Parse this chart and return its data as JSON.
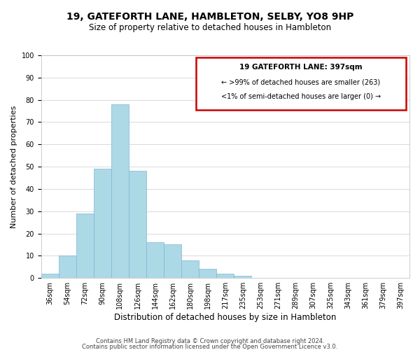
{
  "title": "19, GATEFORTH LANE, HAMBLETON, SELBY, YO8 9HP",
  "subtitle": "Size of property relative to detached houses in Hambleton",
  "xlabel": "Distribution of detached houses by size in Hambleton",
  "ylabel": "Number of detached properties",
  "bar_color": "#add8e6",
  "bar_edge_color": "#7ab8d4",
  "background_color": "#ffffff",
  "grid_color": "#cccccc",
  "bin_labels": [
    "36sqm",
    "54sqm",
    "72sqm",
    "90sqm",
    "108sqm",
    "126sqm",
    "144sqm",
    "162sqm",
    "180sqm",
    "198sqm",
    "217sqm",
    "235sqm",
    "253sqm",
    "271sqm",
    "289sqm",
    "307sqm",
    "325sqm",
    "343sqm",
    "361sqm",
    "379sqm",
    "397sqm"
  ],
  "bar_heights": [
    2,
    10,
    29,
    49,
    78,
    48,
    16,
    15,
    8,
    4,
    2,
    1,
    0,
    0,
    0,
    0,
    0,
    0,
    0,
    0,
    0
  ],
  "ylim": [
    0,
    100
  ],
  "yticks": [
    0,
    10,
    20,
    30,
    40,
    50,
    60,
    70,
    80,
    90,
    100
  ],
  "annotation_box_title": "19 GATEFORTH LANE: 397sqm",
  "annotation_line1": "← >99% of detached houses are smaller (263)",
  "annotation_line2": "<1% of semi-detached houses are larger (0) →",
  "annotation_box_color": "#ffffff",
  "annotation_box_edge_color": "#cc0000",
  "footer_line1": "Contains HM Land Registry data © Crown copyright and database right 2024.",
  "footer_line2": "Contains public sector information licensed under the Open Government Licence v3.0.",
  "title_fontsize": 10,
  "subtitle_fontsize": 8.5,
  "xlabel_fontsize": 8.5,
  "ylabel_fontsize": 8,
  "tick_fontsize": 7,
  "footer_fontsize": 6,
  "annotation_title_fontsize": 7.5,
  "annotation_text_fontsize": 7
}
